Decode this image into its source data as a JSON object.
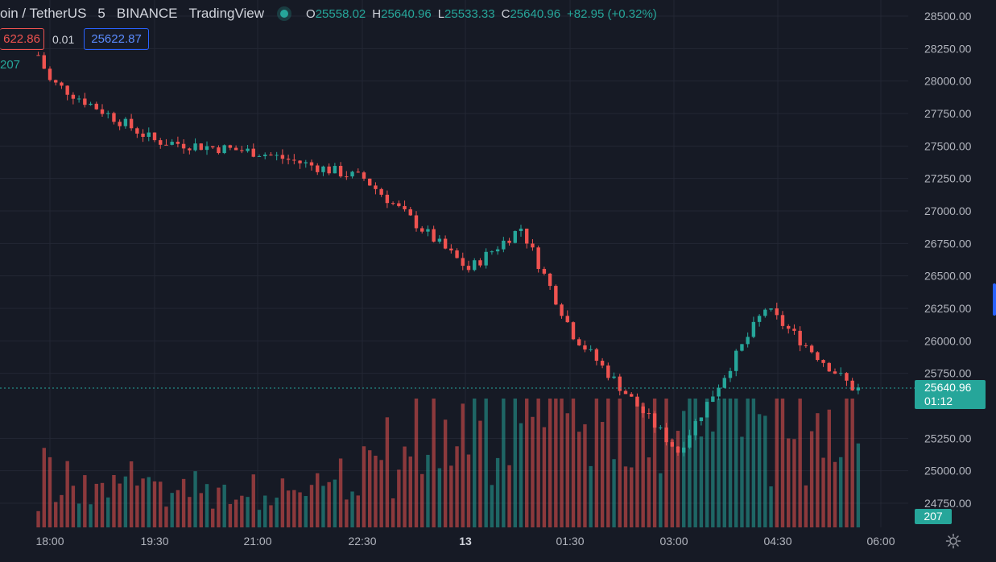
{
  "header": {
    "symbol": "oin / TetherUS",
    "timeframe": "5",
    "exchange": "BINANCE",
    "source": "TradingView",
    "ohlc": {
      "o_label": "O",
      "o_value": "25558.02",
      "h_label": "H",
      "h_value": "25640.96",
      "l_label": "L",
      "l_value": "25533.33",
      "c_label": "C",
      "c_value": "25640.96",
      "change": "+82.95 (+0.32%)"
    }
  },
  "trade": {
    "sell": "622.86",
    "spread": "0.01",
    "buy": "25622.87"
  },
  "volume_tag": "207",
  "last_price": {
    "price": "25640.96",
    "countdown": "01:12"
  },
  "last_volume": "207",
  "colors": {
    "background": "#161a25",
    "up": "#26a69a",
    "down": "#ef5350",
    "grid": "#232734",
    "text": "#b2b5be"
  },
  "chart_data": {
    "type": "candlestick",
    "y_axis": {
      "ticks": [
        "28500.00",
        "28250.00",
        "28000.00",
        "27750.00",
        "27500.00",
        "27250.00",
        "27000.00",
        "26750.00",
        "26500.00",
        "26250.00",
        "26000.00",
        "25750.00",
        "25250.00",
        "25000.00",
        "24750.00"
      ],
      "range": [
        24620,
        28560
      ]
    },
    "x_axis": {
      "ticks": [
        "18:00",
        "19:30",
        "21:00",
        "22:30",
        "13",
        "01:30",
        "03:00",
        "04:30",
        "06:00"
      ]
    },
    "key_points": [
      {
        "time": "17:50",
        "price": 28200
      },
      {
        "time": "18:00",
        "price": 28000
      },
      {
        "time": "19:30",
        "price": 27540
      },
      {
        "time": "21:00",
        "price": 27450
      },
      {
        "time": "22:30",
        "price": 27250
      },
      {
        "time": "00:00",
        "price": 26550
      },
      {
        "time": "00:45",
        "price": 26870
      },
      {
        "time": "01:30",
        "price": 26050
      },
      {
        "time": "03:00",
        "price": 25150
      },
      {
        "time": "04:15",
        "price": 26250
      },
      {
        "time": "05:30",
        "price": 25640.96
      }
    ],
    "grid": true
  }
}
